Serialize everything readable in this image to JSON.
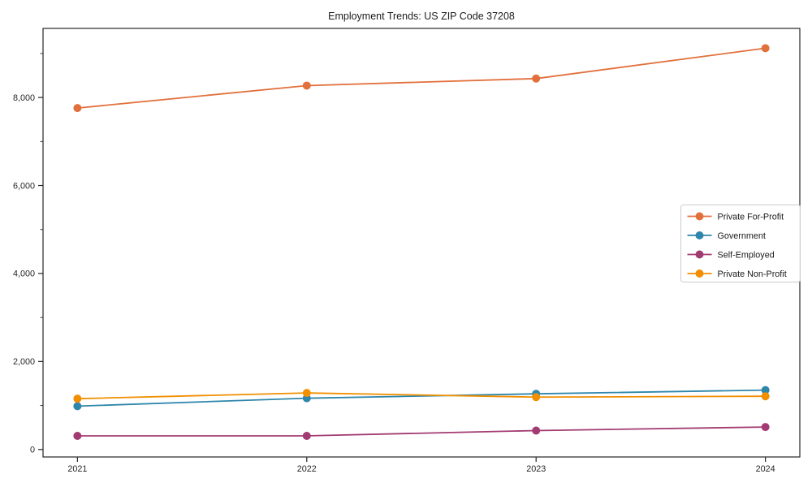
{
  "chart_data": {
    "type": "line",
    "title": "Employment Trends: US ZIP Code 37208",
    "xlabel": "",
    "ylabel": "",
    "grid": false,
    "x": [
      2021,
      2022,
      2023,
      2024
    ],
    "x_tick_labels": [
      "2021",
      "2022",
      "2023",
      "2024"
    ],
    "series": [
      {
        "name": "Private For-Profit",
        "color": "#E2703C",
        "values": [
          7760,
          8270,
          8430,
          9120
        ]
      },
      {
        "name": "Government",
        "color": "#2E86AB",
        "values": [
          985,
          1165,
          1265,
          1350
        ]
      },
      {
        "name": "Self-Employed",
        "color": "#A23B72",
        "values": [
          310,
          310,
          430,
          510
        ]
      },
      {
        "name": "Private Non-Profit",
        "color": "#F18F01",
        "values": [
          1155,
          1285,
          1190,
          1210
        ]
      }
    ],
    "yticks": [
      {
        "value": 0,
        "label": "0"
      },
      {
        "value": 2000,
        "label": "2,000"
      },
      {
        "value": 4000,
        "label": "4,000"
      },
      {
        "value": 6000,
        "label": "6,000"
      },
      {
        "value": 8000,
        "label": "8,000"
      }
    ],
    "y_minor_ticks": [
      1000,
      3000,
      5000,
      7000,
      9000
    ],
    "xlim": [
      2020.85,
      2024.15
    ],
    "ylim": [
      -170,
      9570
    ],
    "legend": {
      "position": "right-middle",
      "entries": [
        "Private For-Profit",
        "Government",
        "Self-Employed",
        "Private Non-Profit"
      ]
    },
    "colors": {
      "spine": "#262626",
      "tick_text": "#262626",
      "title_text": "#1a1a1a",
      "legend_border": "#cccccc",
      "background": "#ffffff"
    }
  }
}
